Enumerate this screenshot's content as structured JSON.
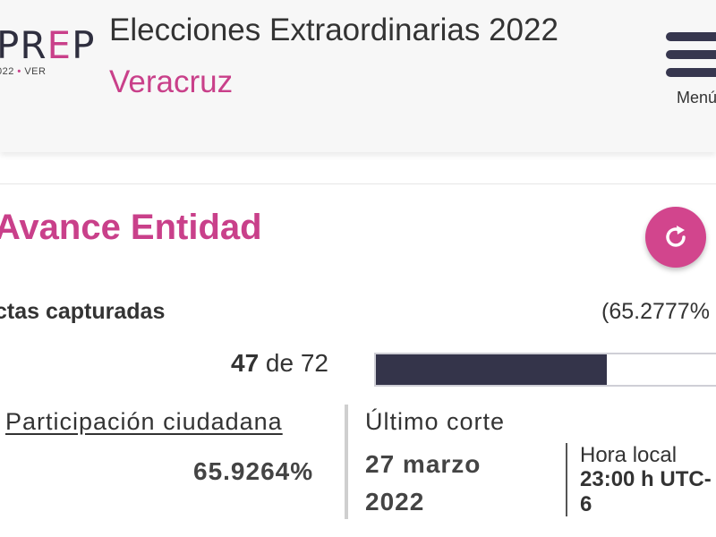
{
  "header": {
    "logo_main_left": "PR",
    "logo_main_e": "E",
    "logo_main_right": "P",
    "logo_sub_left": "022",
    "logo_sub_dot": "•",
    "logo_sub_right": "VER",
    "title": "Elecciones Extraordinarias 2022",
    "subtitle": "Veracruz",
    "menu_label": "Menú"
  },
  "avance": {
    "title": "Avance Entidad",
    "refresh_icon": "refresh-icon",
    "actas_label": "ctas capturadas",
    "actas_pct": "(65.2777%",
    "count_done": "47",
    "count_rest": " de 72",
    "progress_fraction": 0.652777
  },
  "participacion": {
    "label": "Participación ciudadana",
    "value": "65.9264%"
  },
  "corte": {
    "label": "Último corte",
    "date": "27 marzo 2022",
    "hora_label": "Hora local",
    "hora_value_line1": "23:00 h UTC-",
    "hora_value_line2": "6"
  },
  "colors": {
    "accent": "#c9408a",
    "dark": "#34344a"
  }
}
